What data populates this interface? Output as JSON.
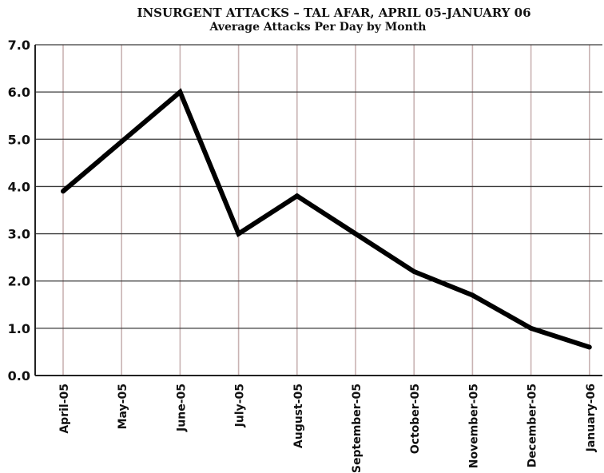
{
  "chart_data": {
    "type": "line",
    "title": "INSURGENT ATTACKS – TAL AFAR, APRIL 05-JANUARY 06",
    "subtitle": "Average Attacks Per Day by Month",
    "categories": [
      "April-05",
      "May-05",
      "June-05",
      "July-05",
      "August-05",
      "September-05",
      "October-05",
      "November-05",
      "December-05",
      "January-06"
    ],
    "series": [
      {
        "values": [
          3.9,
          4.95,
          6.0,
          3.0,
          3.8,
          3.0,
          2.2,
          1.7,
          1.0,
          0.6
        ]
      }
    ],
    "ylim": [
      0,
      7.0
    ],
    "yticks": [
      "0.0",
      "1.0",
      "2.0",
      "3.0",
      "4.0",
      "5.0",
      "6.0",
      "7.0"
    ],
    "grid": true,
    "legend": "none",
    "colors": {
      "line": "#000000",
      "hgrid": "#3a3a3a",
      "vgrid": "#c9b3b3",
      "axis": "#222222",
      "background": "#ffffff"
    }
  }
}
